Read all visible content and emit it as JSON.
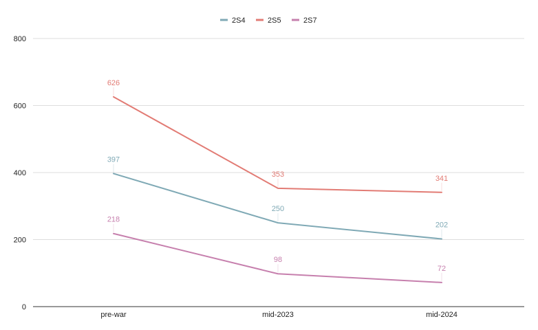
{
  "chart_data": {
    "type": "line",
    "categories": [
      "pre-war",
      "mid-2023",
      "mid-2024"
    ],
    "series": [
      {
        "name": "2S4",
        "color": "#7fa9b5",
        "values": [
          397,
          250,
          202
        ]
      },
      {
        "name": "2S5",
        "color": "#e27b74",
        "values": [
          626,
          353,
          341
        ]
      },
      {
        "name": "2S7",
        "color": "#c67fad",
        "values": [
          218,
          98,
          72
        ]
      }
    ],
    "yticks": [
      0,
      200,
      400,
      600,
      800
    ],
    "ylim": [
      0,
      800
    ],
    "grid": true,
    "legend_position": "top-center",
    "data_labels": true
  }
}
